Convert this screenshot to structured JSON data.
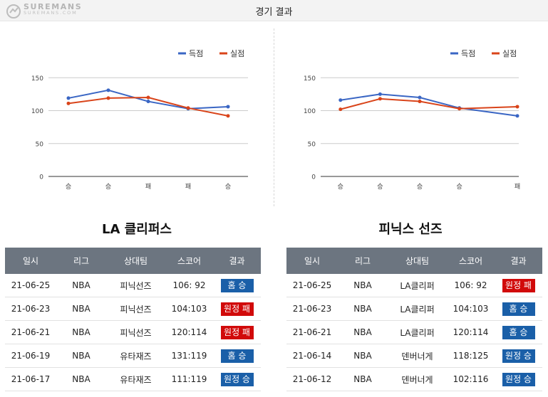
{
  "page_title": "경기 결과",
  "logo": {
    "main": "SUREMANS",
    "sub": "SUREMANS.COM"
  },
  "colors": {
    "scored": "#3a66c4",
    "conceded": "#d9441a",
    "header_bg": "#6c7580",
    "win_badge": "#1a5fa8",
    "loss_badge": "#d10a0a"
  },
  "chart_data": [
    {
      "type": "line",
      "title": "",
      "categories": [
        "승",
        "승",
        "패",
        "패",
        "승"
      ],
      "series": [
        {
          "name": "득점",
          "values": [
            119,
            131,
            114,
            103,
            106
          ]
        },
        {
          "name": "실점",
          "values": [
            111,
            119,
            120,
            104,
            92
          ]
        }
      ],
      "yticks": [
        0,
        50,
        100,
        150
      ],
      "ylim": [
        0,
        160
      ],
      "legend": "top-right",
      "grid": true
    },
    {
      "type": "line",
      "title": "",
      "categories": [
        "승",
        "승",
        "승",
        "승",
        "패"
      ],
      "series": [
        {
          "name": "득점",
          "values": [
            116,
            125,
            120,
            104,
            92
          ]
        },
        {
          "name": "실점",
          "values": [
            102,
            118,
            114,
            103,
            106
          ]
        }
      ],
      "yticks": [
        0,
        50,
        100,
        150
      ],
      "ylim": [
        0,
        160
      ],
      "legend": "top-right",
      "grid": true
    }
  ],
  "teams": [
    {
      "name": "LA 클리퍼스",
      "headers": [
        "일시",
        "리그",
        "상대팀",
        "스코어",
        "결과"
      ],
      "rows": [
        {
          "date": "21-06-25",
          "league": "NBA",
          "opponent": "피닉선즈",
          "score": "106: 92",
          "result": "홈 승",
          "kind": "win"
        },
        {
          "date": "21-06-23",
          "league": "NBA",
          "opponent": "피닉선즈",
          "score": "104:103",
          "result": "원정 패",
          "kind": "loss"
        },
        {
          "date": "21-06-21",
          "league": "NBA",
          "opponent": "피닉선즈",
          "score": "120:114",
          "result": "원정 패",
          "kind": "loss"
        },
        {
          "date": "21-06-19",
          "league": "NBA",
          "opponent": "유타재즈",
          "score": "131:119",
          "result": "홈 승",
          "kind": "win"
        },
        {
          "date": "21-06-17",
          "league": "NBA",
          "opponent": "유타재즈",
          "score": "111:119",
          "result": "원정 승",
          "kind": "win"
        }
      ]
    },
    {
      "name": "피닉스 선즈",
      "headers": [
        "일시",
        "리그",
        "상대팀",
        "스코어",
        "결과"
      ],
      "rows": [
        {
          "date": "21-06-25",
          "league": "NBA",
          "opponent": "LA클리퍼",
          "score": "106: 92",
          "result": "원정 패",
          "kind": "loss"
        },
        {
          "date": "21-06-23",
          "league": "NBA",
          "opponent": "LA클리퍼",
          "score": "104:103",
          "result": "홈 승",
          "kind": "win"
        },
        {
          "date": "21-06-21",
          "league": "NBA",
          "opponent": "LA클리퍼",
          "score": "120:114",
          "result": "홈 승",
          "kind": "win"
        },
        {
          "date": "21-06-14",
          "league": "NBA",
          "opponent": "덴버너게",
          "score": "118:125",
          "result": "원정 승",
          "kind": "win"
        },
        {
          "date": "21-06-12",
          "league": "NBA",
          "opponent": "덴버너게",
          "score": "102:116",
          "result": "원정 승",
          "kind": "win"
        }
      ]
    }
  ]
}
